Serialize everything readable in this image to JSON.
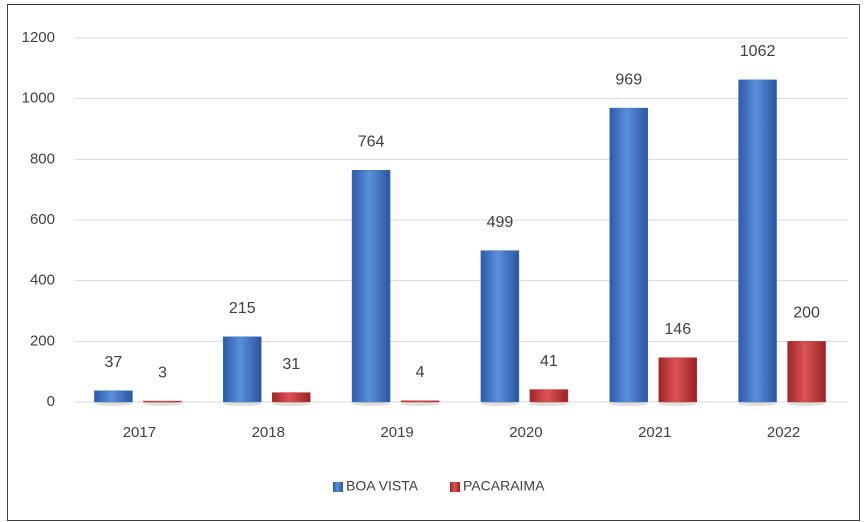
{
  "chart_data": {
    "type": "bar",
    "categories": [
      "2017",
      "2018",
      "2019",
      "2020",
      "2021",
      "2022"
    ],
    "series": [
      {
        "name": "BOA VISTA",
        "color": "#3a70c6",
        "values": [
          37,
          215,
          764,
          499,
          969,
          1062
        ]
      },
      {
        "name": "PACARAIMA",
        "color": "#c3393b",
        "values": [
          3,
          31,
          4,
          41,
          146,
          200
        ]
      }
    ],
    "ylim": [
      0,
      1200
    ],
    "yticks": [
      0,
      200,
      400,
      600,
      800,
      1000,
      1200
    ],
    "grid": true,
    "legend": "bottom"
  }
}
